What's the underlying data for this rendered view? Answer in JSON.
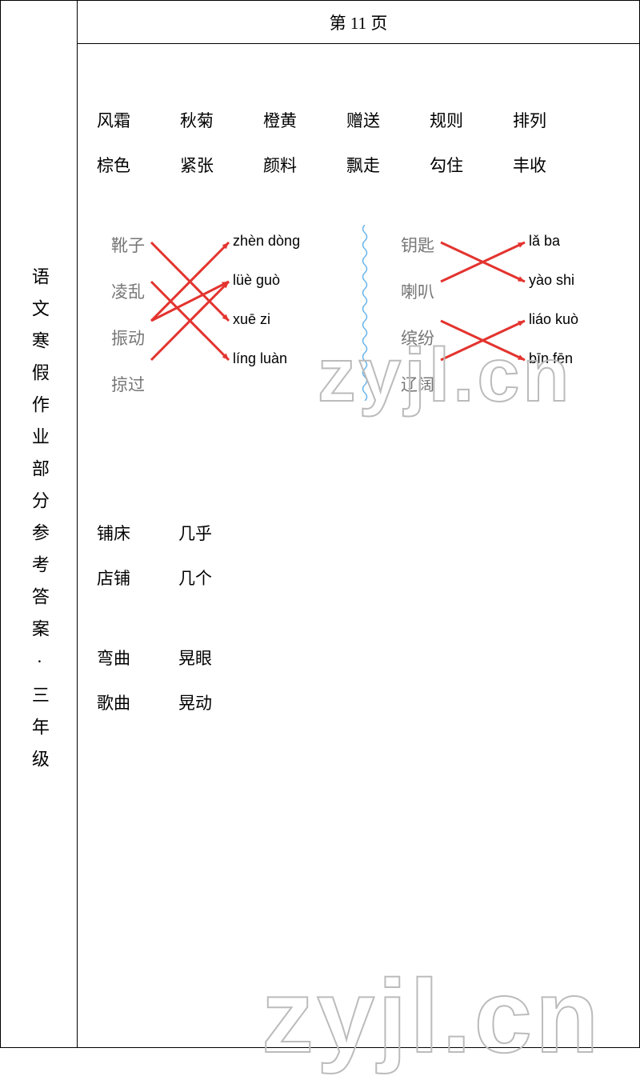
{
  "header": {
    "title": "第 11 页"
  },
  "sidebar": {
    "text": "语文寒假作业部分参考答案·三年级"
  },
  "words": {
    "row1": [
      "风霜",
      "秋菊",
      "橙黄",
      "赠送",
      "规则",
      "排列"
    ],
    "row2": [
      "棕色",
      "紧张",
      "颜料",
      "飘走",
      "勾住",
      "丰收"
    ]
  },
  "matching": {
    "left_words": [
      "靴子",
      "凌乱",
      "振动",
      "掠过"
    ],
    "left_pinyin": [
      "zhèn dòng",
      "lüè guò",
      "xuē zi",
      "líng luàn"
    ],
    "right_words": [
      "钥匙",
      "喇叭",
      "缤纷",
      "辽阔"
    ],
    "right_pinyin": [
      "lǎ ba",
      "yào shi",
      "liáo kuò",
      "bīn fēn"
    ],
    "arrow_color": "#e3342f",
    "left_arrows": [
      {
        "from": 0,
        "to": 2
      },
      {
        "from": 1,
        "to": 3
      },
      {
        "from": 2,
        "to": 0
      },
      {
        "from": 2,
        "to": 1
      },
      {
        "from": 3,
        "to": 1
      }
    ],
    "right_arrows": [
      {
        "from": 0,
        "to": 1
      },
      {
        "from": 1,
        "to": 0
      },
      {
        "from": 2,
        "to": 3
      },
      {
        "from": 3,
        "to": 2
      }
    ],
    "divider_color": "#6bb5e8"
  },
  "pairs1": {
    "row1": [
      "铺床",
      "几乎"
    ],
    "row2": [
      "店铺",
      "几个"
    ]
  },
  "pairs2": {
    "row1": [
      "弯曲",
      "晃眼"
    ],
    "row2": [
      "歌曲",
      "晃动"
    ]
  },
  "watermark": {
    "text1": "zyjl.cn",
    "text2": "zyjl.cn"
  }
}
